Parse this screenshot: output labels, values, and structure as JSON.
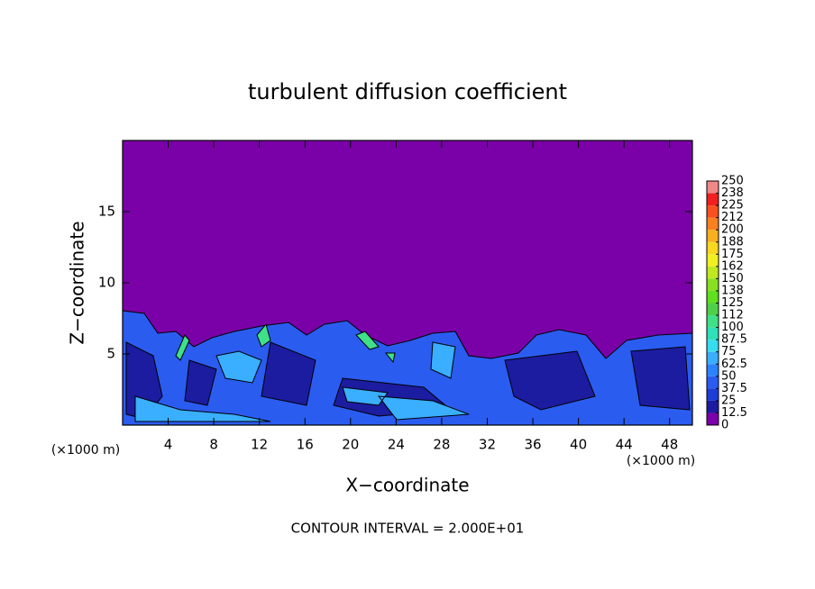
{
  "chart_data": {
    "type": "contour",
    "title": "turbulent diffusion coefficient",
    "xlabel": "X−coordinate",
    "ylabel": "Z−coordinate",
    "xunit": "(×1000 m)",
    "yunit": "(×1000 m)",
    "note": "CONTOUR INTERVAL = 2.000E+01",
    "xlim": [
      0,
      50
    ],
    "ylim": [
      0,
      20
    ],
    "xticks": [
      4,
      8,
      12,
      16,
      20,
      24,
      28,
      32,
      36,
      40,
      44,
      48
    ],
    "yticks": [
      5,
      10,
      15
    ],
    "colorbar": {
      "levels": [
        0,
        12.5,
        25,
        37.5,
        50,
        62.5,
        75,
        87.5,
        100,
        {
          "value": 112.5,
          "label": "112"
        },
        125,
        {
          "value": 137.5,
          "label": "138"
        },
        150,
        {
          "value": 162.5,
          "label": "162"
        },
        175,
        {
          "value": 187.5,
          "label": "188"
        },
        200,
        {
          "value": 212.5,
          "label": "212"
        },
        225,
        {
          "value": 237.5,
          "label": "238"
        },
        250
      ],
      "colors": [
        "#7a00a8",
        "#1c1ca0",
        "#1e3cd6",
        "#2a5cf0",
        "#2a82ff",
        "#3aaeff",
        "#38dcf0",
        "#30e0b8",
        "#40e088",
        "#50d048",
        "#60e020",
        "#88e020",
        "#c0e820",
        "#f0f020",
        "#f8d820",
        "#f8b020",
        "#f88020",
        "#f85020",
        "#f02020",
        "#f08888"
      ]
    }
  }
}
